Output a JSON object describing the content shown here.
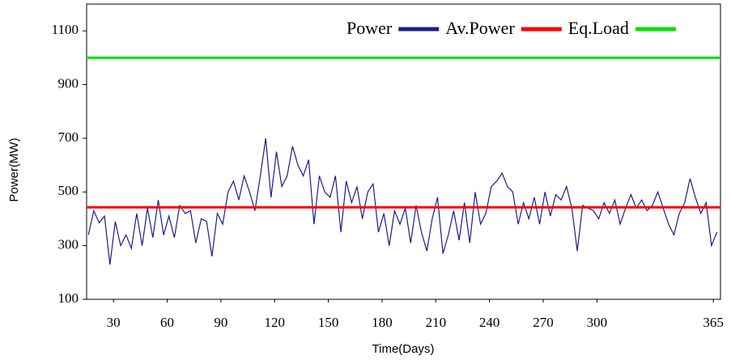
{
  "chart_data": {
    "type": "line",
    "x_label": "Time(Days)",
    "y_label": "Power(MW)",
    "xlim": [
      15,
      369
    ],
    "xticks": [
      30,
      60,
      90,
      120,
      150,
      180,
      210,
      240,
      270,
      300,
      365
    ],
    "ylim": [
      100,
      1200
    ],
    "yticks": [
      100,
      300,
      500,
      700,
      900,
      1100
    ],
    "grid": false,
    "legend": "top-right",
    "series": [
      {
        "name": "Power",
        "color": "#1c1c8c",
        "x": [
          16,
          19,
          22,
          25,
          28,
          31,
          34,
          37,
          40,
          43,
          46,
          49,
          52,
          55,
          58,
          61,
          64,
          67,
          70,
          73,
          76,
          79,
          82,
          85,
          88,
          91,
          94,
          97,
          100,
          103,
          106,
          109,
          112,
          115,
          118,
          121,
          124,
          127,
          130,
          133,
          136,
          139,
          142,
          145,
          148,
          151,
          154,
          157,
          160,
          163,
          166,
          169,
          172,
          175,
          178,
          181,
          184,
          187,
          190,
          193,
          196,
          199,
          202,
          205,
          208,
          211,
          214,
          217,
          220,
          223,
          226,
          229,
          232,
          235,
          238,
          241,
          244,
          247,
          250,
          253,
          256,
          259,
          262,
          265,
          268,
          271,
          274,
          277,
          280,
          283,
          286,
          289,
          292,
          295,
          298,
          301,
          304,
          307,
          310,
          313,
          316,
          319,
          322,
          325,
          328,
          331,
          334,
          337,
          340,
          343,
          346,
          349,
          352,
          355,
          358,
          361,
          364,
          367
        ],
        "values": [
          340,
          430,
          385,
          410,
          230,
          390,
          300,
          340,
          290,
          420,
          300,
          440,
          330,
          470,
          340,
          410,
          330,
          450,
          420,
          430,
          310,
          400,
          390,
          260,
          420,
          380,
          500,
          540,
          470,
          560,
          500,
          430,
          560,
          700,
          480,
          650,
          520,
          560,
          670,
          600,
          560,
          620,
          380,
          560,
          500,
          480,
          560,
          350,
          540,
          460,
          520,
          400,
          500,
          530,
          350,
          420,
          300,
          430,
          380,
          440,
          310,
          450,
          350,
          280,
          400,
          480,
          270,
          340,
          430,
          320,
          460,
          310,
          500,
          380,
          420,
          520,
          540,
          570,
          520,
          500,
          380,
          460,
          400,
          480,
          380,
          500,
          410,
          490,
          470,
          520,
          440,
          280,
          450,
          440,
          430,
          400,
          460,
          420,
          470,
          380,
          440,
          490,
          440,
          470,
          430,
          450,
          500,
          440,
          380,
          340,
          420,
          460,
          550,
          480,
          420,
          460,
          300,
          350
        ]
      },
      {
        "name": "Av.Power",
        "color": "#ff0000",
        "x": [
          15,
          369
        ],
        "values": [
          443,
          443
        ]
      },
      {
        "name": "Eq.Load",
        "color": "#00e000",
        "x": [
          15,
          369
        ],
        "values": [
          1000,
          1000
        ]
      }
    ]
  }
}
